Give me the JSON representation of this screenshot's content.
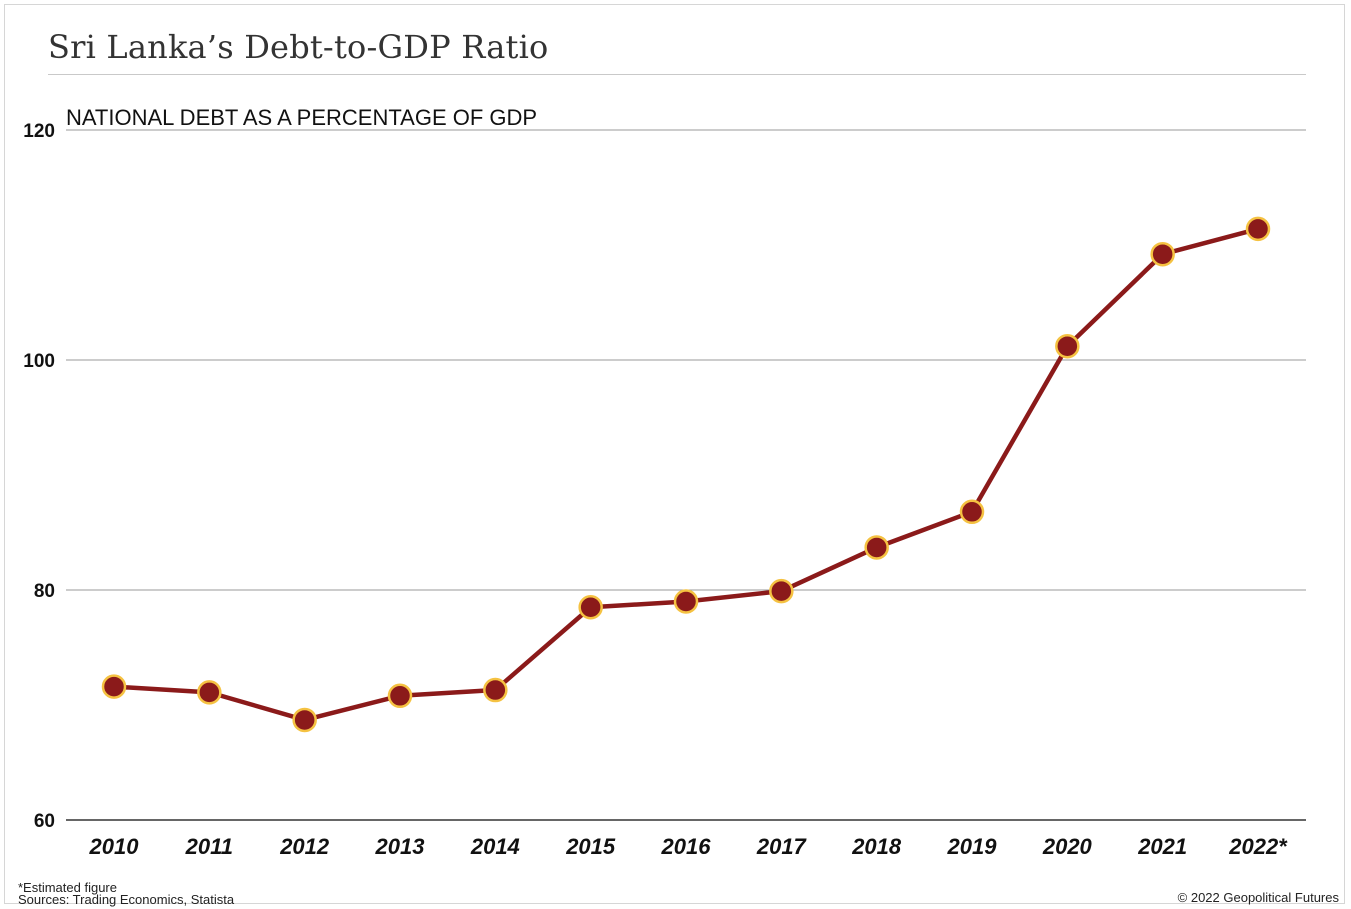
{
  "title": "Sri Lanka’s Debt-to-GDP Ratio",
  "footnote": "*Estimated figure",
  "sources": "Sources: Trading Economics, Statista",
  "copyright": "© 2022 Geopolitical Futures",
  "colors": {
    "line": "#8b1a1a",
    "marker_fill": "#8b1a1a",
    "marker_stroke": "#f5c242",
    "grid": "#9a9a9a",
    "axis": "#333333"
  },
  "chart_data": {
    "type": "line",
    "title": "Sri Lanka’s Debt-to-GDP Ratio",
    "subtitle": "NATIONAL DEBT AS A PERCENTAGE OF GDP",
    "xlabel": "",
    "ylabel": "",
    "categories": [
      "2010",
      "2011",
      "2012",
      "2013",
      "2014",
      "2015",
      "2016",
      "2017",
      "2018",
      "2019",
      "2020",
      "2021",
      "2022*"
    ],
    "series": [
      {
        "values": [
          71.6,
          71.1,
          68.7,
          70.8,
          71.3,
          78.5,
          79.0,
          79.9,
          83.7,
          86.8,
          101.2,
          109.2,
          111.4
        ]
      }
    ],
    "ylim": [
      60,
      120
    ],
    "yticks": [
      60,
      80,
      100,
      120
    ],
    "grid": true,
    "legend": "none"
  }
}
